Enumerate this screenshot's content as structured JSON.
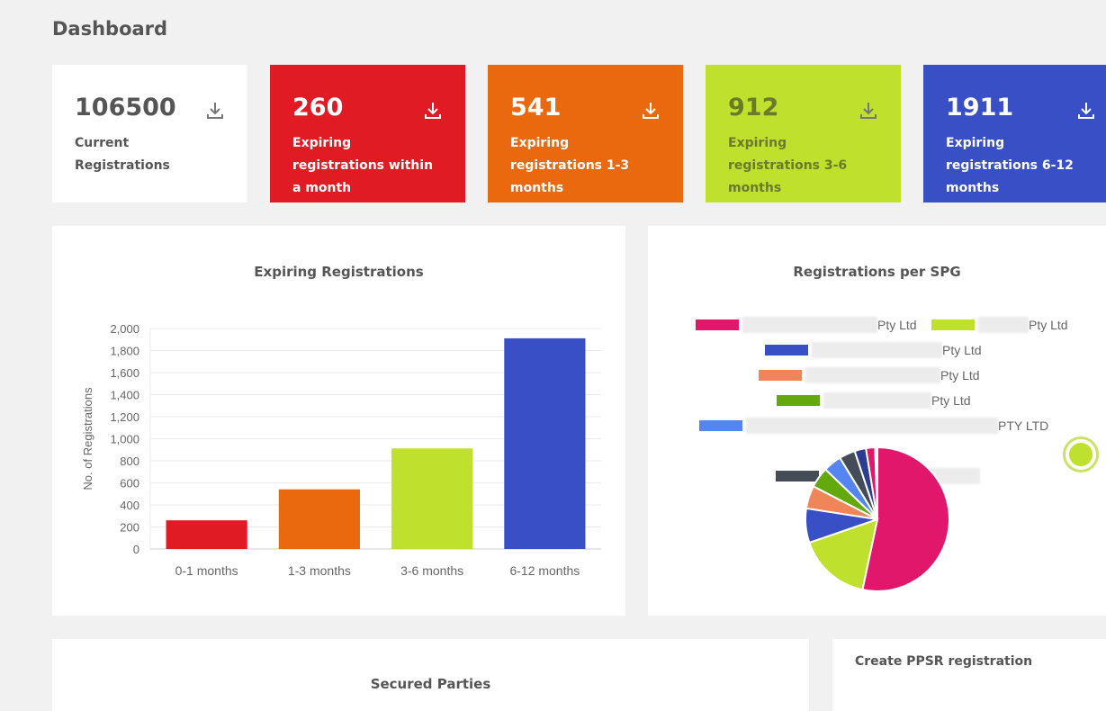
{
  "page_title": "Dashboard",
  "cards": [
    {
      "value": "106500",
      "label": "Current Registrations",
      "bg": "#ffffff",
      "fg": "#555555"
    },
    {
      "value": "260",
      "label": "Expiring registrations within a month",
      "bg": "#e01b24",
      "fg": "#ffffff"
    },
    {
      "value": "541",
      "label": "Expiring registrations 1-3 months",
      "bg": "#ea690e",
      "fg": "#ffffff"
    },
    {
      "value": "912",
      "label": "Expiring registrations 3-6 months",
      "bg": "#bfe02c",
      "fg": "#6b7a2a"
    },
    {
      "value": "1911",
      "label": "Expiring registrations 6-12 months",
      "bg": "#384fc5",
      "fg": "#ffffff"
    }
  ],
  "card_icon": "download-icon",
  "bar_panel": {
    "title": "Expiring Registrations"
  },
  "pie_panel": {
    "title": "Registrations per SPG",
    "legend": [
      {
        "suffix": "Pty Ltd",
        "color": "#e0176b"
      },
      {
        "suffix": "Pty Ltd",
        "color": "#bfe02c"
      },
      {
        "suffix": "Pty Ltd",
        "color": "#384fc5"
      },
      {
        "suffix": "Pty Ltd",
        "color": "#ef8559"
      },
      {
        "suffix": "Pty Ltd",
        "color": "#63a80c"
      },
      {
        "suffix": "PTY LTD",
        "color": "#5585f0"
      },
      {
        "suffix": "",
        "color": "#444c57"
      }
    ]
  },
  "chart_data": [
    {
      "type": "bar",
      "title": "Expiring Registrations",
      "xlabel": "",
      "ylabel": "No. of Registrations",
      "categories": [
        "0-1 months",
        "1-3 months",
        "3-6 months",
        "6-12 months"
      ],
      "values": [
        260,
        541,
        912,
        1911
      ],
      "colors": [
        "#e01b24",
        "#ea690e",
        "#bfe02c",
        "#384fc5"
      ],
      "ylim": [
        0,
        2000
      ],
      "yticks": [
        "0",
        "200",
        "400",
        "600",
        "800",
        "1,000",
        "1,200",
        "1,400",
        "1,600",
        "1,800",
        "2,000"
      ],
      "grid": true
    },
    {
      "type": "pie",
      "title": "Registrations per SPG",
      "values": [
        52,
        16,
        7.5,
        5,
        4.5,
        4,
        3.5,
        2.5,
        2,
        0.5
      ],
      "colors": [
        "#e0176b",
        "#bfe02c",
        "#384fc5",
        "#ef8559",
        "#63a80c",
        "#5585f0",
        "#444c57",
        "#2b3d8f",
        "#e0176b",
        "#cccccc"
      ]
    }
  ],
  "bottom_left": {
    "title": "Secured Parties"
  },
  "bottom_right": {
    "title": "Create PPSR registration"
  }
}
